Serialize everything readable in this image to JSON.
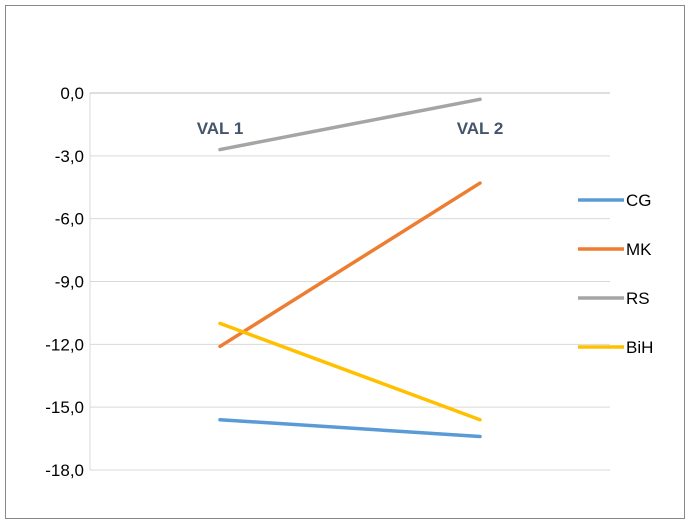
{
  "chart_data": {
    "type": "line",
    "title": "",
    "xlabel": "",
    "ylabel": "",
    "categories": [
      "VAL 1",
      "VAL 2"
    ],
    "ylim": [
      -18.0,
      0.0
    ],
    "yticks": [
      0.0,
      -3.0,
      -6.0,
      -9.0,
      -12.0,
      -15.0,
      -18.0
    ],
    "ytick_labels": [
      "0,0",
      "-3,0",
      "-6,0",
      "-9,0",
      "-12,0",
      "-15,0",
      "-18,0"
    ],
    "grid": true,
    "legend_position": "right",
    "category_axis_position": "top",
    "series": [
      {
        "name": "CG",
        "color": "#5b9bd5",
        "values": [
          -15.6,
          -16.4
        ]
      },
      {
        "name": "MK",
        "color": "#ed7d31",
        "values": [
          -12.1,
          -4.3
        ]
      },
      {
        "name": "RS",
        "color": "#a5a5a5",
        "values": [
          -2.7,
          -0.3
        ]
      },
      {
        "name": "BiH",
        "color": "#ffc000",
        "values": [
          -11.0,
          -15.6
        ]
      }
    ]
  }
}
